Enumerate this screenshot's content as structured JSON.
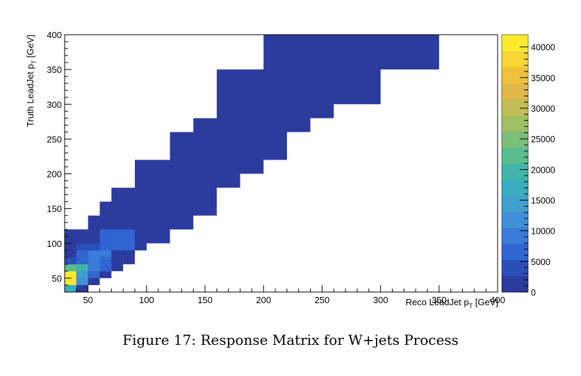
{
  "caption": "Figure 17: Response Matrix for W+jets Process",
  "chart_data": {
    "type": "heatmap",
    "xlabel_main": "Reco LeadJet p",
    "xlabel_sub": "T",
    "xlabel_unit": " [GeV]",
    "ylabel_main": "Truth LeadJet p",
    "ylabel_sub": "T",
    "ylabel_unit": " [GeV]",
    "xlim": [
      30,
      400
    ],
    "ylim": [
      30,
      400
    ],
    "x_ticks": [
      "50",
      "100",
      "150",
      "200",
      "250",
      "300",
      "350",
      "400"
    ],
    "y_ticks": [
      "50",
      "100",
      "150",
      "200",
      "250",
      "300",
      "350",
      "400"
    ],
    "colorbar": {
      "min": 0,
      "max": 42000,
      "ticks": [
        "0",
        "5000",
        "10000",
        "15000",
        "20000",
        "25000",
        "30000",
        "35000",
        "40000"
      ]
    },
    "cells": [
      {
        "x": [
          30,
          40
        ],
        "y": [
          30,
          40
        ],
        "value": 18000
      },
      {
        "x": [
          40,
          50
        ],
        "y": [
          30,
          40
        ],
        "value": 1000
      },
      {
        "x": [
          30,
          40
        ],
        "y": [
          40,
          60
        ],
        "value": 41000
      },
      {
        "x": [
          40,
          50
        ],
        "y": [
          40,
          50
        ],
        "value": 12000
      },
      {
        "x": [
          50,
          60
        ],
        "y": [
          40,
          50
        ],
        "value": 1000
      },
      {
        "x": [
          30,
          40
        ],
        "y": [
          60,
          70
        ],
        "value": 22000
      },
      {
        "x": [
          40,
          50
        ],
        "y": [
          50,
          60
        ],
        "value": 15000
      },
      {
        "x": [
          40,
          50
        ],
        "y": [
          60,
          70
        ],
        "value": 20000
      },
      {
        "x": [
          50,
          60
        ],
        "y": [
          50,
          60
        ],
        "value": 7000
      },
      {
        "x": [
          60,
          70
        ],
        "y": [
          50,
          60
        ],
        "value": 1000
      },
      {
        "x": [
          30,
          40
        ],
        "y": [
          70,
          80
        ],
        "value": 4000
      },
      {
        "x": [
          40,
          50
        ],
        "y": [
          70,
          90
        ],
        "value": 6000
      },
      {
        "x": [
          50,
          60
        ],
        "y": [
          60,
          90
        ],
        "value": 9000
      },
      {
        "x": [
          60,
          70
        ],
        "y": [
          60,
          80
        ],
        "value": 7000
      },
      {
        "x": [
          60,
          70
        ],
        "y": [
          80,
          90
        ],
        "value": 8000
      },
      {
        "x": [
          70,
          80
        ],
        "y": [
          60,
          70
        ],
        "value": 1000
      },
      {
        "x": [
          30,
          40
        ],
        "y": [
          80,
          100
        ],
        "value": 2500
      },
      {
        "x": [
          40,
          50
        ],
        "y": [
          90,
          100
        ],
        "value": 3500
      },
      {
        "x": [
          50,
          60
        ],
        "y": [
          90,
          100
        ],
        "value": 5000
      },
      {
        "x": [
          60,
          70
        ],
        "y": [
          90,
          120
        ],
        "value": 7000
      },
      {
        "x": [
          70,
          80
        ],
        "y": [
          70,
          80
        ],
        "value": 2500
      },
      {
        "x": [
          70,
          80
        ],
        "y": [
          90,
          120
        ],
        "value": 7000
      },
      {
        "x": [
          80,
          90
        ],
        "y": [
          70,
          90
        ],
        "value": 2500
      },
      {
        "x": [
          80,
          90
        ],
        "y": [
          90,
          110
        ],
        "value": 5500
      },
      {
        "x": [
          80,
          90
        ],
        "y": [
          110,
          120
        ],
        "value": 7500
      },
      {
        "x": [
          90,
          100
        ],
        "y": [
          90,
          100
        ],
        "value": 1000
      },
      {
        "x": [
          30,
          60
        ],
        "y": [
          100,
          120
        ],
        "value": 500
      }
    ],
    "background_region": {
      "value": 300,
      "polygon": [
        [
          30,
          30
        ],
        [
          40,
          30
        ],
        [
          40,
          40
        ],
        [
          50,
          40
        ],
        [
          50,
          50
        ],
        [
          60,
          50
        ],
        [
          60,
          60
        ],
        [
          70,
          60
        ],
        [
          70,
          70
        ],
        [
          80,
          70
        ],
        [
          80,
          80
        ],
        [
          90,
          80
        ],
        [
          90,
          90
        ],
        [
          100,
          90
        ],
        [
          100,
          100
        ],
        [
          120,
          100
        ],
        [
          120,
          120
        ],
        [
          140,
          120
        ],
        [
          140,
          140
        ],
        [
          160,
          140
        ],
        [
          160,
          180
        ],
        [
          180,
          180
        ],
        [
          180,
          200
        ],
        [
          200,
          200
        ],
        [
          200,
          220
        ],
        [
          220,
          220
        ],
        [
          220,
          260
        ],
        [
          240,
          260
        ],
        [
          240,
          280
        ],
        [
          260,
          280
        ],
        [
          260,
          300
        ],
        [
          300,
          300
        ],
        [
          300,
          350
        ],
        [
          350,
          350
        ],
        [
          350,
          400
        ],
        [
          200,
          400
        ],
        [
          200,
          350
        ],
        [
          160,
          350
        ],
        [
          160,
          280
        ],
        [
          140,
          280
        ],
        [
          140,
          260
        ],
        [
          120,
          260
        ],
        [
          120,
          220
        ],
        [
          90,
          220
        ],
        [
          90,
          180
        ],
        [
          70,
          180
        ],
        [
          70,
          160
        ],
        [
          60,
          160
        ],
        [
          60,
          140
        ],
        [
          50,
          140
        ],
        [
          50,
          120
        ],
        [
          30,
          120
        ]
      ]
    }
  }
}
